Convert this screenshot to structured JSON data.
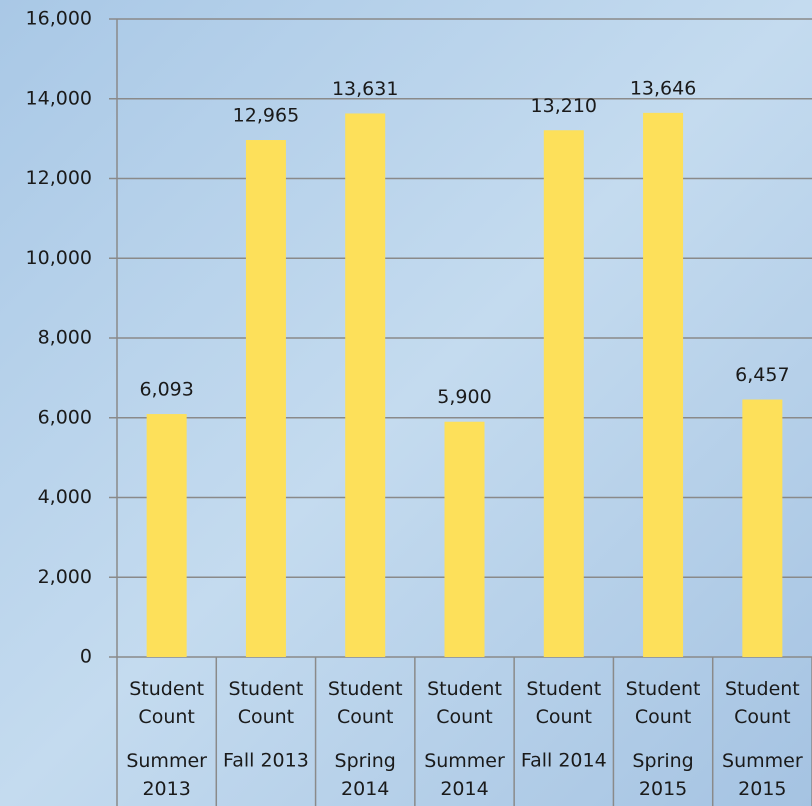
{
  "chart_data": {
    "type": "bar",
    "categories": [
      "Summer 2013",
      "Fall 2013",
      "Spring 2014",
      "Summer 2014",
      "Fall 2014",
      "Spring 2015",
      "Summer 2015"
    ],
    "series": [
      {
        "name": "Student Count",
        "color": "#fde05a",
        "values": [
          6093,
          12965,
          13631,
          5900,
          13210,
          13646,
          6457
        ],
        "value_labels": [
          "6,093",
          "12,965",
          "13,631",
          "5,900",
          "13,210",
          "13,646",
          "6,457"
        ]
      }
    ],
    "ylim": [
      0,
      16000
    ],
    "yticks": [
      0,
      {
        "value": 2000,
        "label": "2,000"
      },
      {
        "value": 4000,
        "label": "4,000"
      },
      {
        "value": 6000,
        "label": "6,000"
      },
      {
        "value": 8000,
        "label": "8,000"
      },
      {
        "value": 10000,
        "label": "10,000"
      },
      {
        "value": 12000,
        "label": "12,000"
      },
      {
        "value": 14000,
        "label": "14,000"
      },
      {
        "value": 16000,
        "label": "16,000"
      }
    ],
    "grid": true
  }
}
